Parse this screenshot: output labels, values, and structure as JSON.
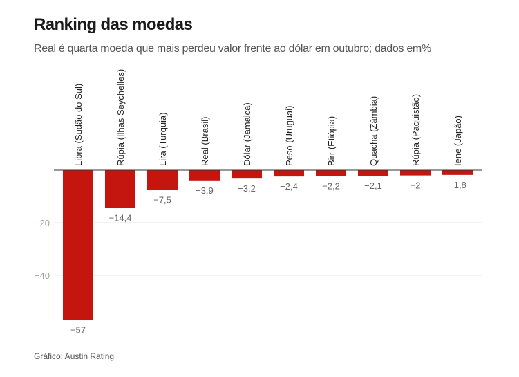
{
  "header": {
    "title": "Ranking das moedas",
    "subtitle": "Real é quarta moeda que mais perdeu valor frente ao dólar em outubro; dados em%"
  },
  "footer": {
    "source": "Gráfico: Austin Rating"
  },
  "colors": {
    "bar": "#c4150f",
    "baseline": "#333333",
    "grid": "#e6e6e6"
  },
  "chart_data": {
    "type": "bar",
    "title": "Ranking das moedas",
    "subtitle": "Real é quarta moeda que mais perdeu valor frente ao dólar em outubro; dados em%",
    "xlabel": "",
    "ylabel": "",
    "categories": [
      "Libra (Sudão do Sul)",
      "Rúpia (Ilhas Seychelles)",
      "Lira (Turquia)",
      "Real (Brasil)",
      "Dólar (Jamaica)",
      "Peso (Uruguai)",
      "Birr (Etiópia)",
      "Quacha (Zâmbia)",
      "Rúpia (Paquistão)",
      "Iene (Japão)"
    ],
    "values": [
      -57,
      -14.4,
      -7.5,
      -3.9,
      -3.2,
      -2.4,
      -2.2,
      -2.1,
      -2,
      -1.8
    ],
    "value_labels": [
      "−57",
      "−14,4",
      "−7,5",
      "−3,9",
      "−3,2",
      "−2,4",
      "−2,2",
      "−2,1",
      "−2",
      "−1,8"
    ],
    "yticks": [
      -20,
      -40
    ],
    "ytick_labels": [
      "−20",
      "−40"
    ],
    "ylim": [
      -57,
      0
    ],
    "grid": true,
    "legend": "none",
    "source": "Gráfico: Austin Rating"
  }
}
